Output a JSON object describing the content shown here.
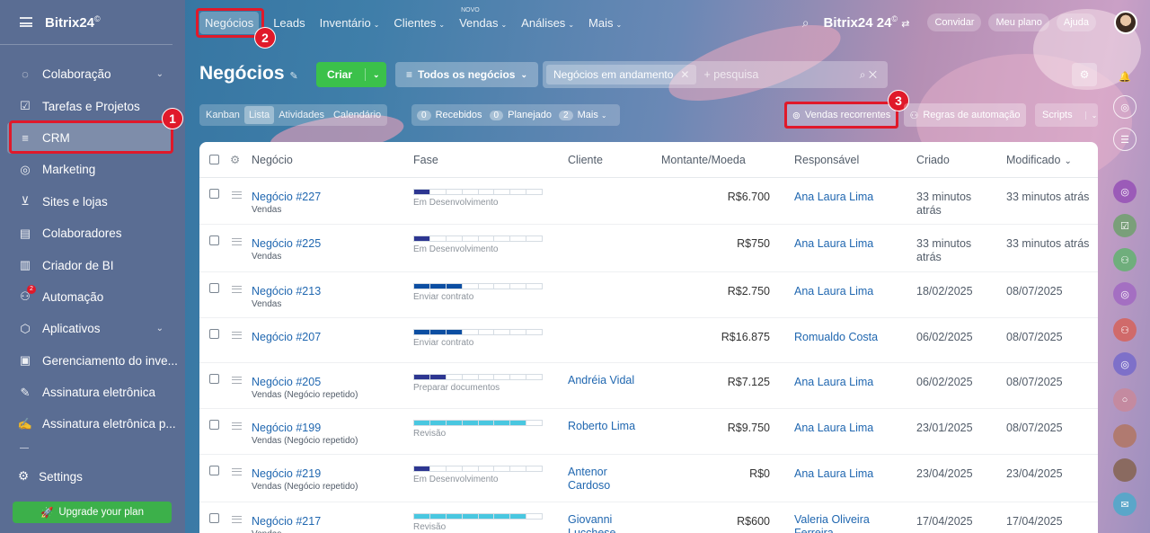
{
  "colors": {
    "accent": "#2067b0",
    "highlight": "#e0192a",
    "create": "#3bc14a",
    "upgrade": "#3cb04a",
    "stage_dev": "#2d3691",
    "stage_contract": "#0c4ea2",
    "stage_prep": "#2d3691",
    "stage_review": "#49c7e0"
  },
  "sidebar": {
    "logo": "Bitrix24",
    "logo_mark": "©",
    "items": [
      {
        "label": "Colaboração",
        "icon": "chat-bubbles-icon",
        "chevron": "⌄"
      },
      {
        "label": "Tarefas e Projetos",
        "icon": "checkbox-icon"
      },
      {
        "label": "CRM",
        "icon": "funnel-icon"
      },
      {
        "label": "Marketing",
        "icon": "target-icon"
      },
      {
        "label": "Sites e lojas",
        "icon": "cart-icon"
      },
      {
        "label": "Colaboradores",
        "icon": "id-card-icon"
      },
      {
        "label": "Criador de BI",
        "icon": "bar-chart-icon"
      },
      {
        "label": "Automação",
        "icon": "robot-icon",
        "badge": "2"
      },
      {
        "label": "Aplicativos",
        "icon": "cube-icon",
        "chevron": "⌄"
      },
      {
        "label": "Gerenciamento do inve...",
        "icon": "archive-icon"
      },
      {
        "label": "Assinatura eletrônica",
        "icon": "pen-icon"
      },
      {
        "label": "Assinatura eletrônica p...",
        "icon": "doc-pen-icon"
      }
    ],
    "settings": "Settings",
    "upgrade": "Upgrade your plan"
  },
  "callouts": [
    "1",
    "2",
    "3"
  ],
  "topnav": {
    "items": [
      {
        "label": "Negócios"
      },
      {
        "label": "Leads"
      },
      {
        "label": "Inventário",
        "caret": "⌄"
      },
      {
        "label": "Clientes",
        "caret": "⌄"
      },
      {
        "label": "Vendas",
        "caret": "⌄",
        "tag": "NOVO"
      },
      {
        "label": "Análises",
        "caret": "⌄"
      },
      {
        "label": "Mais",
        "caret": "⌄"
      }
    ],
    "brand": "Bitrix24",
    "brand_suffix": "©",
    "invite": "Convidar",
    "plan": "Meu plano",
    "help": "Ajuda"
  },
  "header": {
    "title": "Negócios",
    "create": "Criar",
    "all_deals": "Todos os negócios",
    "filter_chip": "Negócios em andamento",
    "search_placeholder": "+ pesquisa"
  },
  "views": [
    "Kanban",
    "Lista",
    "Atividades",
    "Calendário"
  ],
  "counters": [
    {
      "n": "0",
      "label": "Recebidos"
    },
    {
      "n": "0",
      "label": "Planejado"
    },
    {
      "n": "2",
      "label": "Mais"
    }
  ],
  "actions": {
    "recurring": "Vendas recorrentes",
    "automation": "Regras de automação",
    "scripts": "Scripts"
  },
  "table": {
    "columns": [
      "Negócio",
      "Fase",
      "Cliente",
      "Montante/Moeda",
      "Responsável",
      "Criado",
      "Modificado"
    ],
    "sort_indicator": "⌄",
    "rows": [
      {
        "deal": "Negócio #227",
        "pipeline": "Vendas",
        "stage": "Em Desenvolvimento",
        "progress": 0.125,
        "stage_color": "dev",
        "client": "",
        "amount": "R$6.700",
        "owner": "Ana Laura Lima",
        "created": "33 minutos atrás",
        "modified": "33 minutos atrás"
      },
      {
        "deal": "Negócio #225",
        "pipeline": "Vendas",
        "stage": "Em Desenvolvimento",
        "progress": 0.125,
        "stage_color": "dev",
        "client": "",
        "amount": "R$750",
        "owner": "Ana Laura Lima",
        "created": "33 minutos atrás",
        "modified": "33 minutos atrás"
      },
      {
        "deal": "Negócio #213",
        "pipeline": "Vendas",
        "stage": "Enviar contrato",
        "progress": 0.375,
        "stage_color": "contract",
        "client": "",
        "amount": "R$2.750",
        "owner": "Ana Laura Lima",
        "created": "18/02/2025",
        "modified": "08/07/2025"
      },
      {
        "deal": "Negócio #207",
        "pipeline": "",
        "stage": "Enviar contrato",
        "progress": 0.375,
        "stage_color": "contract",
        "client": "",
        "amount": "R$16.875",
        "owner": "Romualdo Costa",
        "created": "06/02/2025",
        "modified": "08/07/2025"
      },
      {
        "deal": "Negócio #205",
        "pipeline": "Vendas (Negócio repetido)",
        "stage": "Preparar documentos",
        "progress": 0.25,
        "stage_color": "prep",
        "client": "Andréia Vidal",
        "amount": "R$7.125",
        "owner": "Ana Laura Lima",
        "created": "06/02/2025",
        "modified": "08/07/2025"
      },
      {
        "deal": "Negócio #199",
        "pipeline": "Vendas (Negócio repetido)",
        "stage": "Revisão",
        "progress": 0.875,
        "stage_color": "review",
        "client": "Roberto Lima",
        "amount": "R$9.750",
        "owner": "Ana Laura Lima",
        "created": "23/01/2025",
        "modified": "08/07/2025"
      },
      {
        "deal": "Negócio #219",
        "pipeline": "Vendas (Negócio repetido)",
        "stage": "Em Desenvolvimento",
        "progress": 0.125,
        "stage_color": "dev",
        "client": "Antenor Cardoso",
        "amount": "R$0",
        "owner": "Ana Laura Lima",
        "created": "23/04/2025",
        "modified": "23/04/2025"
      },
      {
        "deal": "Negócio #217",
        "pipeline": "Vendas",
        "stage": "Revisão",
        "progress": 0.875,
        "stage_color": "review",
        "client": "Giovanni Lucchese",
        "amount": "R$600",
        "owner": "Valeria Oliveira Ferreira",
        "created": "17/04/2025",
        "modified": "17/04/2025"
      }
    ]
  }
}
